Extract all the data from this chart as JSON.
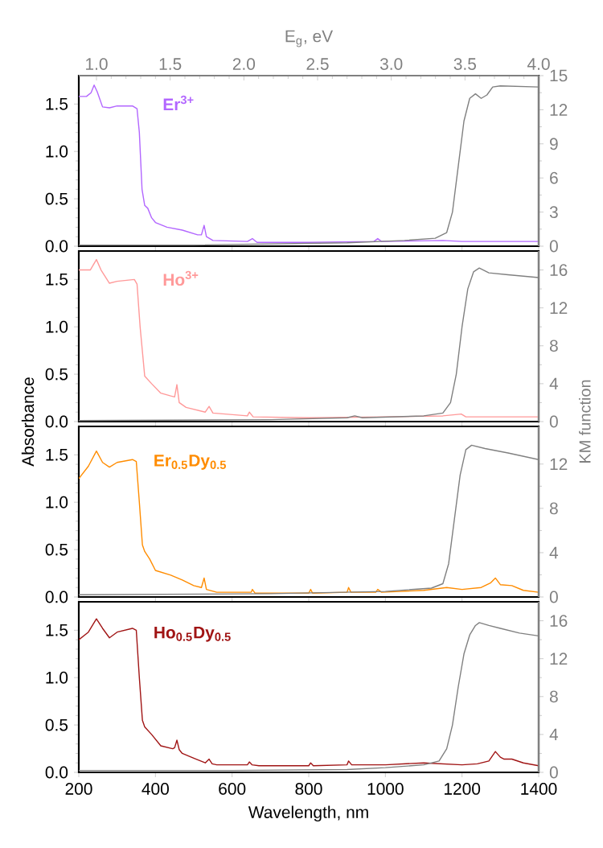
{
  "chart_data": [
    {
      "type": "line",
      "tick_labels": "y",
      "x2label": "E$_{g}$, eV",
      "x2lim": [
        0.88,
        4.0
      ],
      "x2ticks": [
        {
          "value": 1.0,
          "label": "1.0"
        },
        {
          "value": 1.5,
          "label": "1.5"
        },
        {
          "value": 2.0,
          "label": "2.0"
        },
        {
          "value": 2.5,
          "label": "2.5"
        },
        {
          "value": 3.0,
          "label": "3.0"
        },
        {
          "value": 3.5,
          "label": "3.5"
        },
        {
          "value": 4.0,
          "label": "4.0"
        }
      ],
      "xlim": [
        200,
        1400
      ],
      "xticks": [
        200,
        400,
        600,
        800,
        1000,
        1200,
        1400
      ],
      "ylim": [
        0,
        1.8
      ],
      "yticks": [
        {
          "value": 0,
          "label": "0.0"
        },
        {
          "value": 0.5,
          "label": "0.5"
        },
        {
          "value": 1.0,
          "label": "1.0"
        },
        {
          "value": 1.5,
          "label": "1.5"
        }
      ],
      "y2lim": [
        0,
        15
      ],
      "y2ticks": [
        0,
        3,
        6,
        9,
        12,
        15
      ],
      "series": [
        {
          "name": "Er$^{3+}$",
          "color": "#b266ff",
          "x": [
            200,
            220,
            232,
            240,
            248,
            262,
            280,
            300,
            340,
            352,
            358,
            365,
            372,
            380,
            390,
            400,
            430,
            470,
            510,
            520,
            527,
            533,
            550,
            640,
            653,
            665,
            800,
            970,
            980,
            990,
            1150,
            1200,
            1400
          ],
          "values": [
            1.58,
            1.58,
            1.62,
            1.7,
            1.63,
            1.47,
            1.46,
            1.48,
            1.48,
            1.45,
            1.2,
            0.6,
            0.43,
            0.4,
            0.3,
            0.25,
            0.2,
            0.17,
            0.12,
            0.12,
            0.22,
            0.1,
            0.06,
            0.05,
            0.08,
            0.04,
            0.04,
            0.05,
            0.08,
            0.05,
            0.06,
            0.05,
            0.05
          ]
        },
        {
          "color": "#808080",
          "axis": "y2",
          "x": [
            200,
            500,
            700,
            900,
            1050,
            1130,
            1160,
            1175,
            1190,
            1205,
            1220,
            1235,
            1250,
            1265,
            1280,
            1300,
            1400
          ],
          "values": [
            0.1,
            0.1,
            0.2,
            0.3,
            0.5,
            0.7,
            1.2,
            3,
            7,
            11,
            13,
            13.4,
            13,
            13.3,
            14,
            14.1,
            14
          ]
        }
      ]
    },
    {
      "type": "line",
      "tick_labels": "y",
      "ylabel": "Absorbance",
      "y2label": "KM function",
      "xlim": [
        200,
        1400
      ],
      "xticks": [
        200,
        400,
        600,
        800,
        1000,
        1200,
        1400
      ],
      "ylim": [
        0,
        1.8
      ],
      "yticks": [
        {
          "value": 0,
          "label": "0.0"
        },
        {
          "value": 0.5,
          "label": "0.5"
        },
        {
          "value": 1.0,
          "label": "1.0"
        },
        {
          "value": 1.5,
          "label": "1.5"
        }
      ],
      "y2lim": [
        0,
        18
      ],
      "y2ticks": [
        0,
        4,
        8,
        12,
        16
      ],
      "series": [
        {
          "name": "Ho$^{3+}$",
          "color": "#ff9999",
          "x": [
            200,
            230,
            246,
            258,
            280,
            300,
            345,
            352,
            360,
            372,
            390,
            414,
            440,
            450,
            456,
            462,
            480,
            530,
            540,
            550,
            640,
            645,
            655,
            800,
            1000,
            1150,
            1198,
            1210,
            1400
          ],
          "values": [
            1.6,
            1.6,
            1.71,
            1.6,
            1.46,
            1.48,
            1.5,
            1.45,
            1.0,
            0.48,
            0.4,
            0.3,
            0.27,
            0.26,
            0.39,
            0.2,
            0.15,
            0.1,
            0.16,
            0.09,
            0.06,
            0.1,
            0.05,
            0.04,
            0.05,
            0.06,
            0.08,
            0.05,
            0.05
          ]
        },
        {
          "color": "#808080",
          "axis": "y2",
          "x": [
            200,
            700,
            900,
            920,
            940,
            1100,
            1150,
            1170,
            1185,
            1200,
            1215,
            1230,
            1245,
            1270,
            1320,
            1400
          ],
          "values": [
            0.1,
            0.2,
            0.4,
            0.6,
            0.4,
            0.6,
            0.9,
            2,
            5,
            10,
            14,
            15.8,
            16.2,
            15.7,
            15.5,
            15.2
          ]
        }
      ]
    },
    {
      "type": "line",
      "tick_labels": "y",
      "xlim": [
        200,
        1400
      ],
      "xticks": [
        200,
        400,
        600,
        800,
        1000,
        1200,
        1400
      ],
      "ylim": [
        0,
        1.8
      ],
      "yticks": [
        {
          "value": 0,
          "label": "0.0"
        },
        {
          "value": 0.5,
          "label": "0.5"
        },
        {
          "value": 1.0,
          "label": "1.0"
        },
        {
          "value": 1.5,
          "label": "1.5"
        }
      ],
      "y2lim": [
        0,
        15.4
      ],
      "y2ticks": [
        0,
        4,
        8,
        12
      ],
      "series": [
        {
          "name": "Er$_{0.5}$Dy$_{0.5}$",
          "color": "#ff8c00",
          "x": [
            200,
            225,
            246,
            262,
            280,
            300,
            340,
            350,
            358,
            366,
            372,
            385,
            400,
            440,
            470,
            500,
            520,
            527,
            533,
            560,
            650,
            653,
            660,
            800,
            805,
            810,
            900,
            904,
            910,
            975,
            980,
            990,
            1100,
            1160,
            1200,
            1250,
            1275,
            1287,
            1300,
            1330,
            1360,
            1400
          ],
          "values": [
            1.25,
            1.38,
            1.54,
            1.42,
            1.37,
            1.42,
            1.45,
            1.43,
            1.0,
            0.55,
            0.48,
            0.4,
            0.28,
            0.23,
            0.18,
            0.12,
            0.1,
            0.2,
            0.08,
            0.05,
            0.05,
            0.08,
            0.04,
            0.04,
            0.08,
            0.04,
            0.05,
            0.1,
            0.05,
            0.05,
            0.08,
            0.05,
            0.07,
            0.1,
            0.08,
            0.1,
            0.15,
            0.2,
            0.13,
            0.12,
            0.07,
            0.05
          ]
        },
        {
          "color": "#808080",
          "axis": "y2",
          "x": [
            200,
            700,
            1000,
            1120,
            1150,
            1165,
            1180,
            1195,
            1210,
            1225,
            1260,
            1320,
            1400
          ],
          "values": [
            0.2,
            0.3,
            0.5,
            0.8,
            1.2,
            3,
            7,
            11,
            13.3,
            13.7,
            13.4,
            13,
            12.4
          ]
        }
      ]
    },
    {
      "type": "line",
      "xlabel": "Wavelength, nm",
      "xlim": [
        200,
        1400
      ],
      "xticks": [
        200,
        400,
        600,
        800,
        1000,
        1200,
        1400
      ],
      "ylim": [
        0,
        1.8
      ],
      "yticks": [
        {
          "value": 0,
          "label": "0.0"
        },
        {
          "value": 0.5,
          "label": "0.5"
        },
        {
          "value": 1.0,
          "label": "1.0"
        },
        {
          "value": 1.5,
          "label": "1.5"
        }
      ],
      "y2lim": [
        0,
        18
      ],
      "y2ticks": [
        0,
        4,
        8,
        12,
        16
      ],
      "series": [
        {
          "name": "Ho$_{0.5}$Dy$_{0.5}$",
          "color": "#a01414",
          "x": [
            200,
            225,
            246,
            262,
            280,
            300,
            340,
            350,
            358,
            366,
            372,
            390,
            414,
            445,
            450,
            456,
            462,
            470,
            500,
            530,
            540,
            548,
            560,
            640,
            645,
            652,
            670,
            800,
            805,
            812,
            900,
            904,
            912,
            1000,
            1100,
            1200,
            1240,
            1270,
            1287,
            1300,
            1310,
            1330,
            1360,
            1400
          ],
          "values": [
            1.4,
            1.48,
            1.62,
            1.52,
            1.42,
            1.48,
            1.52,
            1.5,
            1.0,
            0.55,
            0.48,
            0.4,
            0.28,
            0.25,
            0.26,
            0.34,
            0.24,
            0.2,
            0.15,
            0.1,
            0.14,
            0.09,
            0.08,
            0.08,
            0.11,
            0.08,
            0.07,
            0.07,
            0.1,
            0.07,
            0.08,
            0.12,
            0.08,
            0.08,
            0.1,
            0.08,
            0.09,
            0.12,
            0.22,
            0.16,
            0.14,
            0.14,
            0.1,
            0.07
          ]
        },
        {
          "color": "#808080",
          "axis": "y2",
          "x": [
            200,
            600,
            900,
            1000,
            1100,
            1140,
            1160,
            1175,
            1190,
            1205,
            1220,
            1235,
            1245,
            1270,
            1300,
            1350,
            1400
          ],
          "values": [
            0.2,
            0.2,
            0.3,
            0.5,
            0.8,
            1.2,
            2.5,
            5,
            9,
            12.5,
            14.5,
            15.5,
            15.8,
            15.5,
            15.2,
            14.7,
            14.4
          ]
        }
      ]
    }
  ]
}
